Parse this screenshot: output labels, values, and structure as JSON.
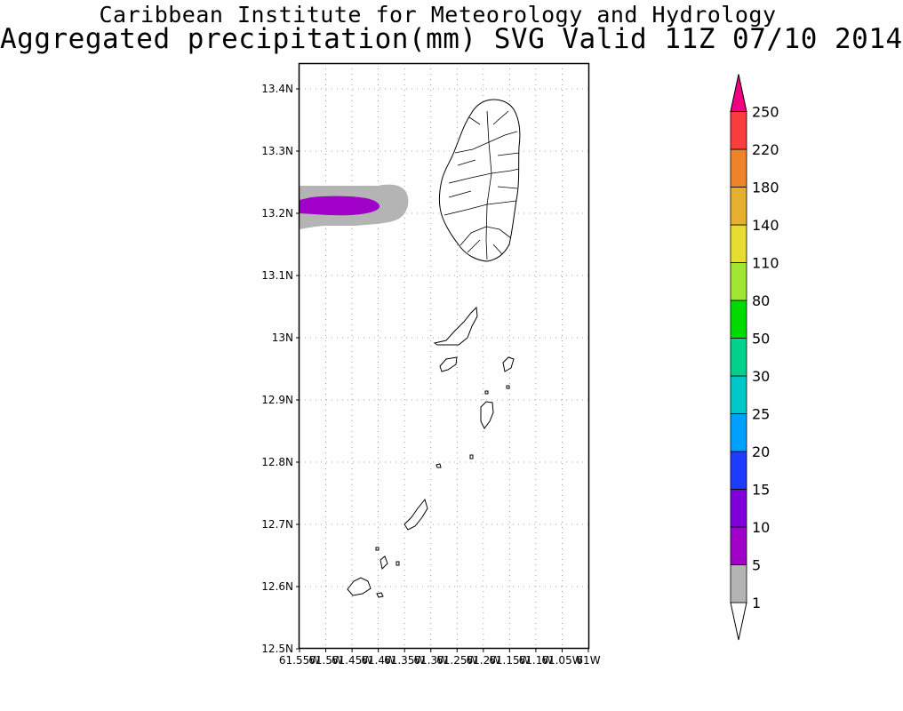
{
  "header": {
    "line1": "Caribbean Institute for Meteorology and Hydrology",
    "line2": "Aggregated precipitation(mm) SVG Valid 11Z 07/10 2014"
  },
  "map": {
    "lat_ticks": [
      "13.4N",
      "13.3N",
      "13.2N",
      "13.1N",
      "13N",
      "12.9N",
      "12.8N",
      "12.7N",
      "12.6N",
      "12.5N"
    ],
    "lon_ticks": [
      "61.55W",
      "61.5W",
      "61.45W",
      "61.4W",
      "61.35W",
      "61.3W",
      "61.25W",
      "61.2W",
      "61.15W",
      "61.1W",
      "61.05W",
      "61W"
    ],
    "lon_range": [
      -61.55,
      -61.0
    ],
    "lat_range": [
      12.5,
      13.45
    ],
    "grid": true
  },
  "colorbar": {
    "levels": [
      {
        "label": "1",
        "color": "#b4b4b4"
      },
      {
        "label": "5",
        "color": "#a000c8"
      },
      {
        "label": "10",
        "color": "#8200dc"
      },
      {
        "label": "15",
        "color": "#1e3cff"
      },
      {
        "label": "20",
        "color": "#00a0ff"
      },
      {
        "label": "25",
        "color": "#00c8c8"
      },
      {
        "label": "30",
        "color": "#00d28c"
      },
      {
        "label": "50",
        "color": "#00dc00"
      },
      {
        "label": "80",
        "color": "#a0e632"
      },
      {
        "label": "110",
        "color": "#e6dc32"
      },
      {
        "label": "140",
        "color": "#e6af2d"
      },
      {
        "label": "180",
        "color": "#f08228"
      },
      {
        "label": "220",
        "color": "#fa3c3c"
      },
      {
        "label": "250",
        "color": "#f00082"
      }
    ],
    "top_arrow_color": "#f00082",
    "bottom_arrow_color": "#ffffff"
  },
  "precip_colors": {
    "light": "#b4b4b4",
    "moderate": "#a000c8"
  }
}
